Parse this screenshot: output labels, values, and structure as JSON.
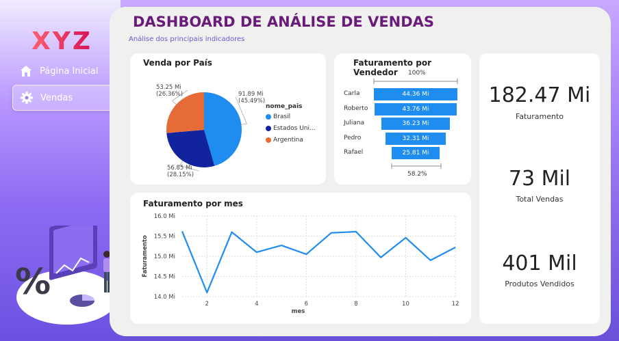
{
  "logo": "XYZ",
  "nav": [
    {
      "label": "Página Inicial",
      "icon": "home-icon"
    },
    {
      "label": "Vendas",
      "icon": "gear-icon"
    }
  ],
  "header": {
    "title": "DASHBOARD DE ANÁLISE DE VENDAS",
    "subtitle": "Análise dos principais indicadores"
  },
  "colors": {
    "brasil": "#1f8cf0",
    "estados_unidos": "#12239e",
    "argentina": "#e66c37",
    "accent": "#6a1b7a"
  },
  "pie": {
    "title": "Venda por País",
    "legend_title": "nome_pais",
    "chart_data": {
      "type": "pie",
      "slices": [
        {
          "name": "Brasil",
          "value": 91.89,
          "label": "91.89 Mi",
          "pct": "(45.49%)"
        },
        {
          "name": "Estados Uni...",
          "value": 56.85,
          "label": "56.85 Mi",
          "pct": "(28.15%)"
        },
        {
          "name": "Argentina",
          "value": 53.25,
          "label": "53.25 Mi",
          "pct": "(26.36%)"
        }
      ]
    }
  },
  "funnel": {
    "title": "Faturamento por Vendedor",
    "top_pct": "100%",
    "bottom_pct": "58.2%",
    "chart_data": {
      "type": "bar",
      "categories": [
        "Carla",
        "Roberto",
        "Juliana",
        "Pedro",
        "Rafael"
      ],
      "values": [
        44.36,
        43.76,
        36.23,
        32.31,
        25.81
      ],
      "labels": [
        "44.36 Mi",
        "43.76 Mi",
        "36.23 Mi",
        "32.31 Mi",
        "25.81 Mi"
      ]
    }
  },
  "line": {
    "title": "Faturamento por mes",
    "chart_data": {
      "type": "line",
      "x": [
        1,
        2,
        3,
        4,
        5,
        6,
        7,
        8,
        9,
        10,
        11,
        12
      ],
      "values": [
        15.62,
        14.1,
        15.6,
        15.1,
        15.27,
        15.05,
        15.58,
        15.61,
        14.97,
        15.46,
        14.9,
        15.22
      ],
      "xlabel": "mes",
      "ylabel": "Faturamento",
      "ylim": [
        14.0,
        16.0
      ],
      "yticks": [
        "14.0 Mi",
        "14.5 Mi",
        "15.0 Mi",
        "15.5 Mi",
        "16.0 Mi"
      ],
      "xticks": [
        "2",
        "4",
        "6",
        "8",
        "10",
        "12"
      ],
      "grid": true
    }
  },
  "kpis": [
    {
      "value": "182.47 Mi",
      "label": "Faturamento"
    },
    {
      "value": "73 Mil",
      "label": "Total Vendas"
    },
    {
      "value": "401 Mil",
      "label": "Produtos Vendidos"
    }
  ]
}
